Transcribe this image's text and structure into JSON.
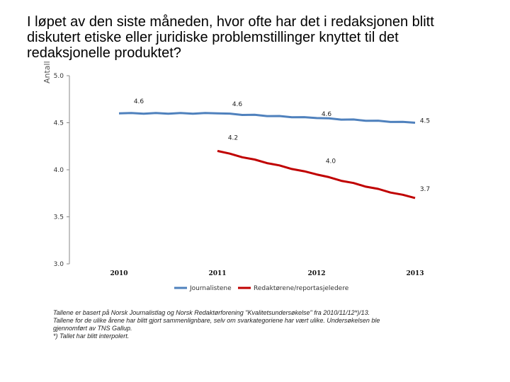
{
  "title": "I løpet av den siste måneden, hvor ofte har det i redaksjonen blitt diskutert etiske eller juridiske problemstillinger knyttet til det redaksjonelle produktet?",
  "chart_data": {
    "type": "line",
    "title": "I løpet av den siste måneden, hvor ofte har det i redaksjonen blitt diskutert etiske eller juridiske problemstillinger knyttet til det redaksjonelle produktet?",
    "xlabel": "",
    "ylabel": "Antall",
    "x": [
      "2010",
      "2011",
      "2012",
      "2013"
    ],
    "ylim": [
      3.0,
      5.0
    ],
    "yticks": [
      "3.0",
      "3.5",
      "4.0",
      "4.5",
      "5.0"
    ],
    "grid": false,
    "legend_position": "bottom",
    "series": [
      {
        "name": "Journalistene",
        "color": "#4f81bd",
        "values": [
          4.6,
          4.6,
          4.55,
          4.5
        ],
        "labels": [
          "4.6",
          "4.6",
          "4.6",
          "4.5"
        ]
      },
      {
        "name": "Redaktørene/reportasjeledere",
        "color": "#c00000",
        "values": [
          null,
          4.2,
          3.95,
          3.7
        ],
        "labels": [
          null,
          "4.2",
          "4.0",
          "3.7"
        ]
      }
    ]
  },
  "notes": [
    "Tallene er basert på Norsk Journalistlag og Norsk Redaktørforening \"Kvalitetsundersøkelse\" fra 2010/11/12*)/13.",
    "Tallene for de ulike årene har blitt gjort sammenlignbare, selv om svarkategoriene har vært ulike. Undersøkelsen ble",
    "gjennomført av TNS Gallup.",
    "*) Tallet har blitt interpolert."
  ]
}
